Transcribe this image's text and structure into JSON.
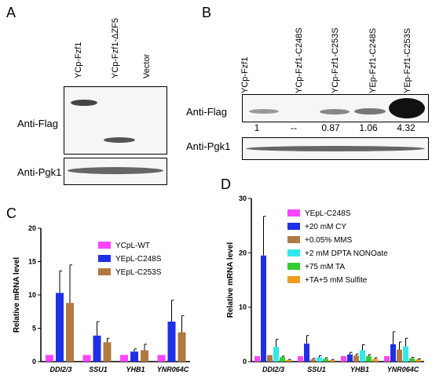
{
  "panelA": {
    "letter": "A",
    "lanes": [
      "YCp-Fzf1",
      "YCp-Fzf1-ΔZF5",
      "Vector"
    ],
    "rows": [
      "Anti-Flag",
      "Anti-Pgk1"
    ]
  },
  "panelB": {
    "letter": "B",
    "lanes": [
      "YCp-Fzf1",
      "YCp-Fzf1-C248S",
      "YCp-Fzf1-C253S",
      "YEp-Fzf1-C248S",
      "YEp-Fzf1-C253S"
    ],
    "rows": [
      "Anti-Flag",
      "Anti-Pgk1"
    ],
    "quant": [
      "1",
      "--",
      "0.87",
      "1.06",
      "4.32"
    ]
  },
  "chart_data": [
    {
      "panel": "C",
      "type": "bar",
      "ylabel": "Relative mRNA level",
      "ylim": [
        0,
        20
      ],
      "yticks": [
        "0",
        "5",
        "10",
        "15",
        "20"
      ],
      "categories": [
        "DDI2/3",
        "SSU1",
        "YHB1",
        "YNR064C"
      ],
      "series": [
        {
          "name": "YCpL-WT",
          "color": "#ff44ff",
          "values": [
            1,
            1,
            1,
            1
          ],
          "errors": [
            0,
            0,
            0,
            0
          ]
        },
        {
          "name": "YEpL-C248S",
          "color": "#1f2fe8",
          "values": [
            10.3,
            3.9,
            1.5,
            6.0
          ],
          "errors": [
            3.3,
            2.1,
            0.4,
            3.2
          ]
        },
        {
          "name": "YEpL-C253S",
          "color": "#b07a40",
          "values": [
            8.8,
            2.9,
            1.7,
            4.4
          ],
          "errors": [
            5.7,
            0.6,
            0.9,
            2.5
          ]
        }
      ]
    },
    {
      "panel": "D",
      "type": "bar",
      "ylabel": "Relative mRNA level",
      "ylim": [
        0,
        30
      ],
      "yticks": [
        "0",
        "10",
        "20",
        "30"
      ],
      "categories": [
        "DDI2/3",
        "SSU1",
        "YHB1",
        "YNR064C"
      ],
      "series": [
        {
          "name": "YEpL-C248S",
          "color": "#ff44ff",
          "values": [
            1,
            1,
            1,
            1
          ],
          "errors": [
            0,
            0,
            0,
            0
          ]
        },
        {
          "name": "+20 mM CY",
          "color": "#1f2fe8",
          "values": [
            19.5,
            3.3,
            1.3,
            3.2
          ],
          "errors": [
            7.2,
            1.5,
            0.4,
            2.3
          ]
        },
        {
          "name": "+0.05% MMS",
          "color": "#b07a40",
          "values": [
            1.2,
            0.4,
            1.1,
            2.2
          ],
          "errors": [
            0,
            0.2,
            0.3,
            1.4
          ]
        },
        {
          "name": "+2 mM DPTA NONOate",
          "color": "#33e8e8",
          "values": [
            2.7,
            0.8,
            2.1,
            2.8
          ],
          "errors": [
            1.4,
            0.3,
            1.0,
            1.5
          ]
        },
        {
          "name": "+75 mM TA",
          "color": "#33cc33",
          "values": [
            0.8,
            0.5,
            1.0,
            0.6
          ],
          "errors": [
            0.2,
            0.2,
            0.3,
            0.2
          ]
        },
        {
          "name": "+TA+5 mM Sulfite",
          "color": "#f09a20",
          "values": [
            0.3,
            0.3,
            0.5,
            0.4
          ],
          "errors": [
            0.1,
            0.1,
            0.2,
            0.1
          ]
        }
      ]
    }
  ]
}
